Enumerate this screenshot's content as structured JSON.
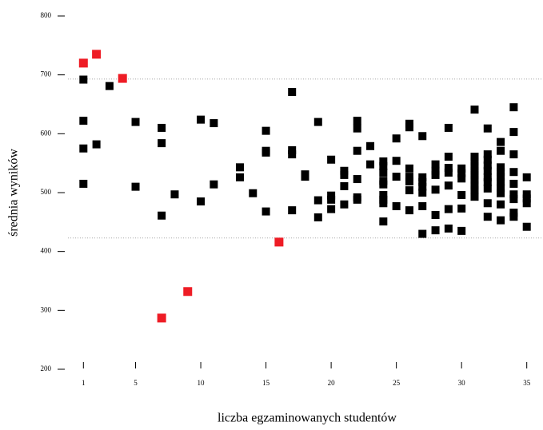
{
  "chart_data": {
    "type": "scatter",
    "x_label": "liczba egzaminowanych studentów",
    "y_label": "średnia wyników",
    "xlim": [
      0,
      36
    ],
    "ylim": [
      200,
      800
    ],
    "xticks": [
      1,
      5,
      10,
      15,
      20,
      25,
      30,
      35
    ],
    "yticks": [
      200,
      300,
      400,
      500,
      600,
      700,
      800
    ],
    "reference_lines": [
      693,
      423
    ],
    "reference_color": "#aaaaaa",
    "series": [
      {
        "color": "#000000",
        "x": [
          1,
          1,
          1,
          1,
          2,
          3,
          5,
          5,
          7,
          7,
          7,
          8,
          10,
          10,
          11,
          11,
          13,
          13,
          14,
          15,
          15,
          15,
          15,
          17,
          17,
          17,
          17,
          18,
          18,
          19,
          19,
          19,
          20,
          20,
          20,
          20,
          21,
          21,
          21,
          21,
          22,
          22,
          22,
          22,
          22,
          22,
          23,
          23,
          24,
          24,
          24,
          24,
          24,
          24,
          24,
          24,
          24,
          25,
          25,
          25,
          25,
          26,
          26,
          26,
          26,
          26,
          26,
          26,
          27,
          27,
          27,
          27,
          27,
          27,
          27,
          28,
          28,
          28,
          28,
          28,
          28,
          29,
          29,
          29,
          29,
          29,
          29,
          29,
          30,
          30,
          30,
          30,
          30,
          30,
          31,
          31,
          31,
          31,
          31,
          31,
          31,
          31,
          31,
          31,
          32,
          32,
          32,
          32,
          32,
          32,
          32,
          32,
          32,
          32,
          33,
          33,
          33,
          33,
          33,
          33,
          33,
          33,
          33,
          33,
          34,
          34,
          34,
          34,
          34,
          34,
          34,
          34,
          34,
          35,
          35,
          35,
          35,
          35
        ],
        "y": [
          692,
          622,
          575,
          515,
          582,
          681,
          620,
          510,
          610,
          584,
          461,
          497,
          624,
          485,
          618,
          514,
          543,
          526,
          499,
          605,
          571,
          568,
          468,
          671,
          572,
          565,
          470,
          531,
          527,
          620,
          487,
          458,
          556,
          495,
          488,
          472,
          537,
          530,
          511,
          480,
          622,
          609,
          571,
          523,
          492,
          488,
          579,
          548,
          553,
          545,
          534,
          520,
          514,
          496,
          488,
          482,
          451,
          592,
          554,
          527,
          477,
          617,
          611,
          541,
          527,
          519,
          504,
          470,
          596,
          526,
          518,
          510,
          500,
          477,
          430,
          548,
          537,
          530,
          505,
          462,
          436,
          610,
          561,
          542,
          534,
          512,
          472,
          439,
          541,
          533,
          524,
          496,
          473,
          435,
          641,
          561,
          553,
          545,
          537,
          530,
          522,
          512,
          504,
          493,
          609,
          565,
          556,
          546,
          537,
          526,
          518,
          507,
          482,
          459,
          586,
          571,
          543,
          535,
          527,
          518,
          508,
          499,
          480,
          453,
          645,
          603,
          565,
          535,
          515,
          497,
          489,
          466,
          459,
          526,
          497,
          490,
          482,
          442
        ]
      },
      {
        "color": "#ee1c25",
        "x": [
          1,
          2,
          4,
          7,
          9,
          16
        ],
        "y": [
          720,
          735,
          694,
          287,
          332,
          416
        ]
      }
    ]
  }
}
